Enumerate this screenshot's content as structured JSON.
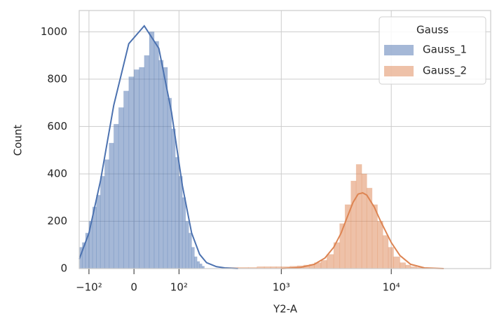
{
  "chart_data": {
    "type": "histogram",
    "x_label": "Y2-A",
    "y_label": "Count",
    "xscale": "asinh",
    "xlim": [
      -130,
      80000
    ],
    "ylim": [
      0,
      1090
    ],
    "xticks": [
      {
        "value": -100,
        "label": "−10²"
      },
      0,
      {
        "value": 100,
        "label": "10²"
      },
      {
        "value": 1000,
        "label": "10³"
      },
      {
        "value": 10000,
        "label": "10⁴"
      }
    ],
    "yticks": [
      0,
      200,
      400,
      600,
      800,
      1000
    ],
    "grid": true,
    "legend_title": "Gauss",
    "legend_position": "upper right",
    "series": [
      {
        "name": "Gauss_1",
        "color": "#4c72b0",
        "bins": [
          -130,
          -120,
          -110,
          -100,
          -90,
          -80,
          -70,
          -60,
          -50,
          -40,
          -30,
          -20,
          -10,
          0,
          10,
          20,
          30,
          40,
          50,
          60,
          70,
          80,
          90,
          100,
          110,
          120,
          130,
          140,
          150,
          160,
          170,
          180,
          190
        ],
        "values": [
          90,
          110,
          150,
          200,
          260,
          310,
          390,
          460,
          530,
          610,
          680,
          750,
          810,
          840,
          850,
          900,
          1000,
          960,
          880,
          850,
          720,
          590,
          470,
          390,
          300,
          200,
          150,
          90,
          50,
          30,
          20,
          10
        ],
        "kde": {
          "x": [
            -130,
            -100,
            -70,
            -40,
            -10,
            20,
            50,
            80,
            110,
            140,
            170,
            200,
            250,
            300,
            400
          ],
          "y": [
            40,
            150,
            370,
            690,
            950,
            1025,
            930,
            660,
            350,
            150,
            60,
            25,
            8,
            3,
            0
          ]
        }
      },
      {
        "name": "Gauss_2",
        "color": "#dd8452",
        "bins": [
          300,
          400,
          500,
          600,
          700,
          800,
          900,
          1000,
          1200,
          1400,
          1600,
          1800,
          2000,
          2300,
          2600,
          3000,
          3400,
          3800,
          4300,
          4800,
          5400,
          6000,
          6700,
          7500,
          8400,
          9400,
          10500,
          12000,
          13500,
          15000,
          17000,
          19000,
          21000
        ],
        "values": [
          5,
          5,
          5,
          8,
          8,
          8,
          8,
          8,
          10,
          12,
          15,
          18,
          25,
          35,
          60,
          110,
          190,
          270,
          370,
          440,
          400,
          340,
          270,
          200,
          140,
          90,
          50,
          25,
          15,
          8,
          5,
          3
        ],
        "kde": {
          "x": [
            1000,
            1500,
            2000,
            2500,
            3000,
            3500,
            4000,
            4500,
            5000,
            5500,
            6000,
            7000,
            8000,
            10000,
            12000,
            15000,
            20000,
            30000
          ],
          "y": [
            0,
            5,
            18,
            45,
            90,
            150,
            220,
            280,
            315,
            320,
            310,
            260,
            200,
            110,
            55,
            18,
            3,
            0
          ]
        }
      }
    ]
  }
}
